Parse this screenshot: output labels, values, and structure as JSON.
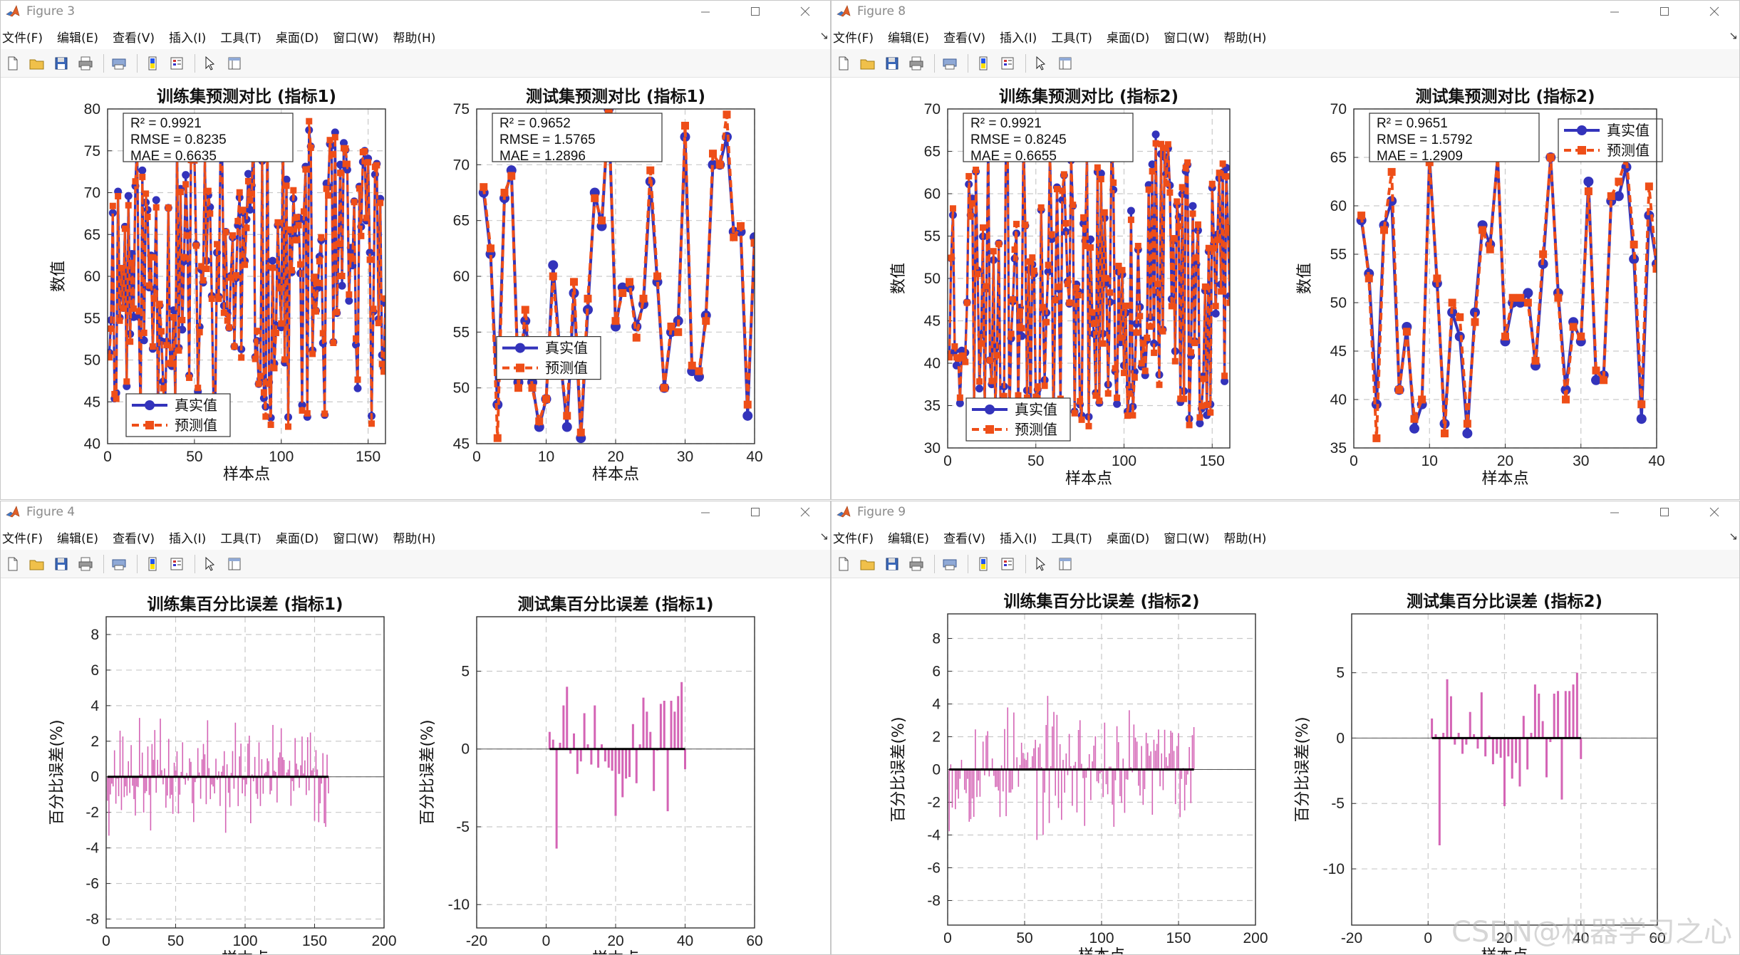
{
  "menu": [
    "文件(F)",
    "编辑(E)",
    "查看(V)",
    "插入(I)",
    "工具(T)",
    "桌面(D)",
    "窗口(W)",
    "帮助(H)"
  ],
  "colors": {
    "true_series": "#3333bb",
    "pred_series": "#ee4e18",
    "error_bar": "#d464b5",
    "grid": "#c9c9c9"
  },
  "icons": [
    "new-file-icon",
    "open-folder-icon",
    "save-icon",
    "print-icon",
    "print-preview-icon",
    "link-icon",
    "insert-colorbar-icon",
    "insert-legend-icon",
    "pointer-arrow-icon",
    "property-editor-icon"
  ],
  "watermark": "CSDN@机器学习之心",
  "windows": [
    {
      "title": "Figure 3",
      "charts": [
        {
          "type": "line",
          "title": "训练集预测对比 (指标1)",
          "xlabel": "样本点",
          "ylabel": "数值",
          "xlim": [
            0,
            160
          ],
          "ylim": [
            40,
            80
          ],
          "xticks": [
            0,
            50,
            100,
            150
          ],
          "yticks": [
            40,
            45,
            50,
            55,
            60,
            65,
            70,
            75,
            80
          ],
          "grid": true,
          "legend_location": "bottom-left",
          "legend": [
            "真实值",
            "预测值"
          ],
          "stats": [
            "R² = 0.9921",
            "RMSE = 0.8235",
            "MAE = 0.6635"
          ],
          "n": 160,
          "seed": 11
        },
        {
          "type": "line",
          "title": "测试集预测对比 (指标1)",
          "xlabel": "样本点",
          "ylabel": "",
          "xlim": [
            0,
            40
          ],
          "ylim": [
            45,
            75
          ],
          "xticks": [
            0,
            10,
            20,
            30,
            40
          ],
          "yticks": [
            45,
            50,
            55,
            60,
            65,
            70,
            75
          ],
          "grid": true,
          "legend_location": "middle-left",
          "legend": [
            "真实值",
            "预测值"
          ],
          "stats": [
            "R² = 0.9652",
            "RMSE = 1.5765",
            "MAE = 1.2896"
          ],
          "x": [
            1,
            2,
            3,
            4,
            5,
            6,
            7,
            8,
            9,
            10,
            11,
            12,
            13,
            14,
            15,
            16,
            17,
            18,
            19,
            20,
            21,
            22,
            23,
            24,
            25,
            26,
            27,
            28,
            29,
            30,
            31,
            32,
            33,
            34,
            35,
            36,
            37,
            38,
            39,
            40
          ],
          "true": [
            67.5,
            62.0,
            48.5,
            67.0,
            69.5,
            50.5,
            56.0,
            50.5,
            46.5,
            49.0,
            61.0,
            53.0,
            46.5,
            58.5,
            45.5,
            57.0,
            67.5,
            64.5,
            75.0,
            55.5,
            59.0,
            59.0,
            55.5,
            57.5,
            68.5,
            59.5,
            50.0,
            55.0,
            56.0,
            72.5,
            51.5,
            51.0,
            56.5,
            70.0,
            70.0,
            72.5,
            64.0,
            64.0,
            47.5,
            63.5
          ],
          "pred": [
            68.0,
            62.5,
            45.5,
            67.5,
            69.0,
            50.0,
            57.0,
            50.0,
            47.0,
            49.0,
            60.0,
            52.5,
            47.5,
            59.5,
            46.0,
            58.0,
            67.0,
            65.0,
            75.0,
            56.0,
            58.5,
            59.5,
            54.5,
            58.0,
            69.5,
            60.0,
            50.0,
            55.5,
            55.0,
            73.5,
            52.0,
            51.5,
            56.0,
            71.0,
            70.0,
            74.5,
            63.5,
            64.5,
            48.5,
            63.0
          ]
        }
      ]
    },
    {
      "title": "Figure 8",
      "charts": [
        {
          "type": "line",
          "title": "训练集预测对比 (指标2)",
          "xlabel": "样本点",
          "ylabel": "数值",
          "xlim": [
            0,
            160
          ],
          "ylim": [
            30,
            70
          ],
          "xticks": [
            0,
            50,
            100,
            150
          ],
          "yticks": [
            30,
            35,
            40,
            45,
            50,
            55,
            60,
            65,
            70
          ],
          "grid": true,
          "legend_location": "bottom-left",
          "legend": [
            "真实值",
            "预测值"
          ],
          "stats": [
            "R² = 0.9921",
            "RMSE = 0.8245",
            "MAE = 0.6655"
          ],
          "n": 160,
          "seed": 23
        },
        {
          "type": "line",
          "title": "测试集预测对比 (指标2)",
          "xlabel": "样本点",
          "ylabel": "数值",
          "xlim": [
            0,
            40
          ],
          "ylim": [
            35,
            70
          ],
          "xticks": [
            0,
            10,
            20,
            30,
            40
          ],
          "yticks": [
            35,
            40,
            45,
            50,
            55,
            60,
            65,
            70
          ],
          "grid": true,
          "legend_location": "top-right",
          "legend": [
            "真实值",
            "预测值"
          ],
          "stats": [
            "R² = 0.9651",
            "RMSE = 1.5792",
            "MAE = 1.2909"
          ],
          "x": [
            1,
            2,
            3,
            4,
            5,
            6,
            7,
            8,
            9,
            10,
            11,
            12,
            13,
            14,
            15,
            16,
            17,
            18,
            19,
            20,
            21,
            22,
            23,
            24,
            25,
            26,
            27,
            28,
            29,
            30,
            31,
            32,
            33,
            34,
            35,
            36,
            37,
            38,
            39,
            40
          ],
          "true": [
            58.5,
            53.0,
            39.5,
            58.0,
            60.5,
            41.0,
            47.5,
            37.0,
            39.5,
            65.0,
            52.0,
            37.5,
            49.0,
            46.5,
            36.5,
            49.0,
            58.0,
            56.0,
            65.0,
            46.0,
            50.0,
            50.0,
            51.0,
            43.5,
            54.0,
            65.0,
            51.0,
            41.0,
            48.0,
            46.0,
            62.5,
            42.0,
            42.5,
            60.5,
            61.0,
            64.0,
            54.5,
            38.0,
            59.0,
            54.0
          ],
          "pred": [
            59.0,
            52.5,
            36.0,
            57.5,
            63.5,
            41.0,
            47.0,
            38.0,
            40.0,
            64.5,
            52.5,
            36.5,
            50.0,
            48.5,
            37.5,
            48.0,
            57.5,
            55.5,
            65.0,
            46.5,
            50.5,
            50.5,
            50.0,
            44.0,
            55.0,
            65.0,
            50.5,
            40.0,
            47.5,
            46.5,
            61.5,
            43.0,
            42.0,
            61.0,
            62.5,
            65.0,
            56.0,
            39.5,
            62.0,
            53.5
          ]
        }
      ]
    },
    {
      "title": "Figure 4",
      "charts": [
        {
          "type": "bar",
          "title": "训练集百分比误差 (指标1)",
          "xlabel": "样本点",
          "ylabel": "百分比误差(%)",
          "xlim": [
            0,
            200
          ],
          "ylim": [
            -8.5,
            9
          ],
          "xticks": [
            0,
            50,
            100,
            150,
            200
          ],
          "yticks": [
            -8,
            -6,
            -4,
            -2,
            0,
            2,
            4,
            6,
            8
          ],
          "grid": true,
          "n": 160,
          "seed": 37,
          "amp": 3.9
        },
        {
          "type": "bar",
          "title": "测试集百分比误差 (指标1)",
          "xlabel": "样本点",
          "ylabel": "百分比误差(%)",
          "xlim": [
            -20,
            60
          ],
          "ylim": [
            -11.5,
            8.5
          ],
          "xticks": [
            -20,
            0,
            20,
            40,
            60
          ],
          "yticks": [
            -10,
            -5,
            0,
            5
          ],
          "grid": true,
          "x": [
            1,
            2,
            3,
            4,
            5,
            6,
            7,
            8,
            9,
            10,
            11,
            12,
            13,
            14,
            15,
            16,
            17,
            18,
            19,
            20,
            21,
            22,
            23,
            24,
            25,
            26,
            27,
            28,
            29,
            30,
            31,
            32,
            33,
            34,
            35,
            36,
            37,
            38,
            39,
            40
          ],
          "values": [
            1.1,
            0.6,
            -6.4,
            0.4,
            2.8,
            4.0,
            -0.3,
            1.0,
            -1.6,
            -0.8,
            2.3,
            0.3,
            -1.0,
            2.8,
            -1.2,
            0.3,
            -0.8,
            -1.2,
            -1.4,
            -4.3,
            -1.6,
            -3.1,
            -1.9,
            -1.8,
            1.6,
            -2.2,
            0.3,
            3.3,
            2.4,
            1.1,
            -2.7,
            -0.1,
            2.9,
            3.1,
            -4.0,
            3.1,
            2.4,
            3.4,
            4.3,
            -1.3
          ]
        }
      ]
    },
    {
      "title": "Figure 9",
      "charts": [
        {
          "type": "bar",
          "title": "训练集百分比误差 (指标2)",
          "xlabel": "样本点",
          "ylabel": "百分比误差(%)",
          "xlim": [
            0,
            200
          ],
          "ylim": [
            -9.5,
            9.5
          ],
          "xticks": [
            0,
            50,
            100,
            150,
            200
          ],
          "yticks": [
            -8,
            -6,
            -4,
            -2,
            0,
            2,
            4,
            6,
            8
          ],
          "grid": true,
          "n": 160,
          "seed": 53,
          "amp": 4.8
        },
        {
          "type": "bar",
          "title": "测试集百分比误差 (指标2)",
          "xlabel": "样本点",
          "ylabel": "百分比误差(%)",
          "xlim": [
            -20,
            60
          ],
          "ylim": [
            -14.3,
            9.5
          ],
          "xticks": [
            -20,
            0,
            20,
            40,
            60
          ],
          "yticks": [
            -10,
            -5,
            0,
            5
          ],
          "grid": true,
          "x": [
            1,
            2,
            3,
            4,
            5,
            6,
            7,
            8,
            9,
            10,
            11,
            12,
            13,
            14,
            15,
            16,
            17,
            18,
            19,
            20,
            21,
            22,
            23,
            24,
            25,
            26,
            27,
            28,
            29,
            30,
            31,
            32,
            33,
            34,
            35,
            36,
            37,
            38,
            39,
            40
          ],
          "values": [
            1.5,
            0.3,
            -8.2,
            0.4,
            4.5,
            3.2,
            -0.5,
            0.4,
            -1.2,
            -0.5,
            2.0,
            0.3,
            -0.8,
            3.5,
            -1.4,
            0.2,
            -2.0,
            -1.2,
            -1.5,
            -5.2,
            -1.4,
            -3.1,
            -1.9,
            -3.7,
            1.7,
            -2.4,
            0.4,
            4.1,
            3.4,
            1.3,
            -3.0,
            -0.3,
            3.4,
            3.6,
            -4.7,
            3.6,
            3.6,
            4.1,
            5.0,
            -1.6
          ]
        }
      ]
    }
  ]
}
